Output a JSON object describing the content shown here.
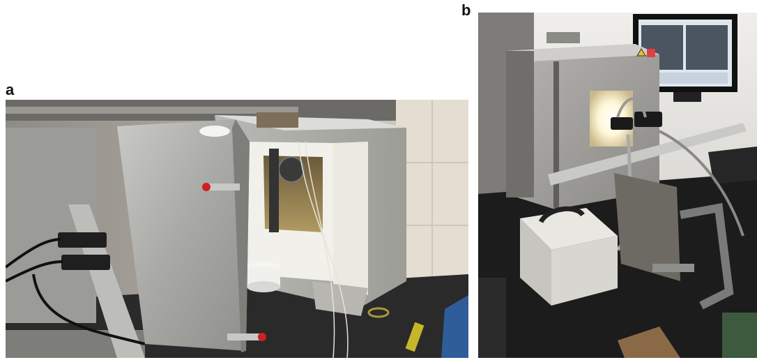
{
  "figure": {
    "panels": [
      {
        "label": "a"
      },
      {
        "label": "b"
      }
    ]
  }
}
